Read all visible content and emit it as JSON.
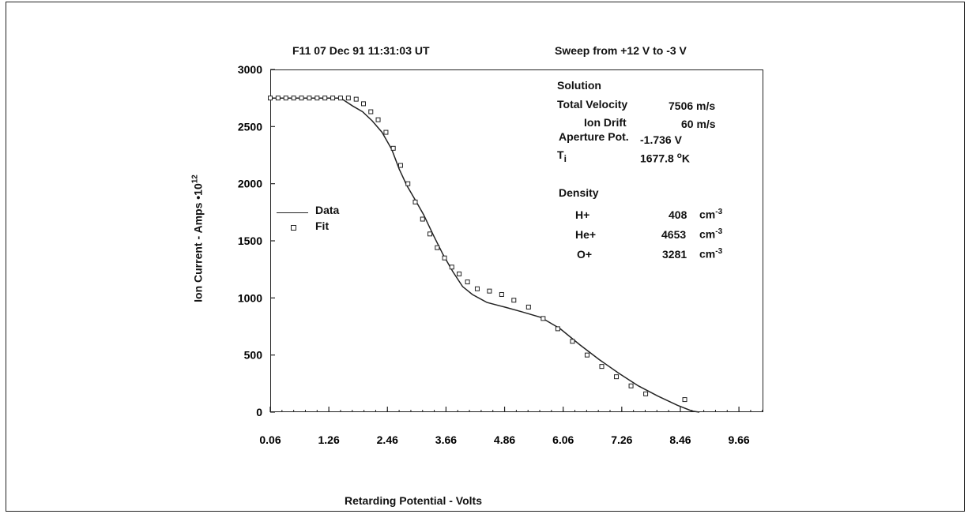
{
  "header": {
    "left": "F11  07 Dec 91  11:31:03 UT",
    "right": "Sweep  from  +12 V  to  -3 V"
  },
  "chart_data": {
    "type": "line",
    "xlabel": "Retarding Potential  -  Volts",
    "ylabel": "Ion Current   -   Amps •10",
    "ylabel_exponent": "12",
    "xlim": [
      0.06,
      10.16
    ],
    "ylim": [
      0,
      3000
    ],
    "x_ticks": [
      "0.06",
      "1.26",
      "2.46",
      "3.66",
      "4.86",
      "6.06",
      "7.26",
      "8.46",
      "9.66"
    ],
    "y_ticks": [
      "0",
      "500",
      "1000",
      "1500",
      "2000",
      "2500",
      "3000"
    ],
    "legend": {
      "line_label": "Data",
      "marker_label": "Fit"
    },
    "series": [
      {
        "name": "Data",
        "style": "line",
        "x": [
          0.06,
          1.5,
          1.75,
          1.95,
          2.15,
          2.35,
          2.55,
          2.7,
          2.85,
          3.0,
          3.2,
          3.4,
          3.6,
          3.8,
          4.0,
          4.2,
          4.5,
          4.86,
          5.2,
          5.6,
          6.0,
          6.4,
          6.8,
          7.2,
          7.6,
          8.0,
          8.4,
          8.7,
          8.85
        ],
        "y": [
          2750,
          2750,
          2680,
          2630,
          2550,
          2450,
          2300,
          2130,
          1990,
          1880,
          1730,
          1550,
          1380,
          1230,
          1100,
          1030,
          960,
          920,
          880,
          830,
          730,
          590,
          460,
          340,
          230,
          140,
          60,
          10,
          0
        ]
      },
      {
        "name": "Fit",
        "style": "marker",
        "x": [
          0.06,
          0.22,
          0.38,
          0.54,
          0.7,
          0.86,
          1.02,
          1.18,
          1.34,
          1.5,
          1.66,
          1.82,
          1.97,
          2.12,
          2.27,
          2.43,
          2.58,
          2.73,
          2.88,
          3.03,
          3.18,
          3.33,
          3.48,
          3.63,
          3.78,
          3.93,
          4.1,
          4.3,
          4.55,
          4.8,
          5.05,
          5.35,
          5.65,
          5.95,
          6.25,
          6.55,
          6.85,
          7.15,
          7.45,
          7.75,
          8.55
        ],
        "y": [
          2750,
          2750,
          2750,
          2750,
          2750,
          2750,
          2750,
          2750,
          2750,
          2750,
          2750,
          2740,
          2700,
          2630,
          2560,
          2450,
          2310,
          2160,
          2000,
          1840,
          1690,
          1560,
          1440,
          1350,
          1270,
          1210,
          1140,
          1080,
          1060,
          1030,
          980,
          920,
          820,
          730,
          620,
          500,
          400,
          310,
          230,
          160,
          110
        ]
      }
    ],
    "grid": false
  },
  "info": {
    "solution_label": "Solution",
    "total_velocity_label": "Total Velocity",
    "total_velocity_value": "7506 m/s",
    "ion_drift_label": "Ion Drift",
    "ion_drift_value": "60 m/s",
    "aperture_label": "Aperture Pot.",
    "aperture_value": "-1.736  V",
    "ti_label": "T",
    "ti_sub": "i",
    "ti_value": "1677.8 ",
    "ti_unit_sup": "o",
    "ti_unit": "K",
    "density_label": "Density",
    "species": [
      {
        "name": "H+",
        "value": "408",
        "unit": "cm",
        "unit_exp": "-3"
      },
      {
        "name": "He+",
        "value": "4653",
        "unit": "cm",
        "unit_exp": "-3"
      },
      {
        "name": "O+",
        "value": "3281",
        "unit": "cm",
        "unit_exp": "-3"
      }
    ]
  }
}
